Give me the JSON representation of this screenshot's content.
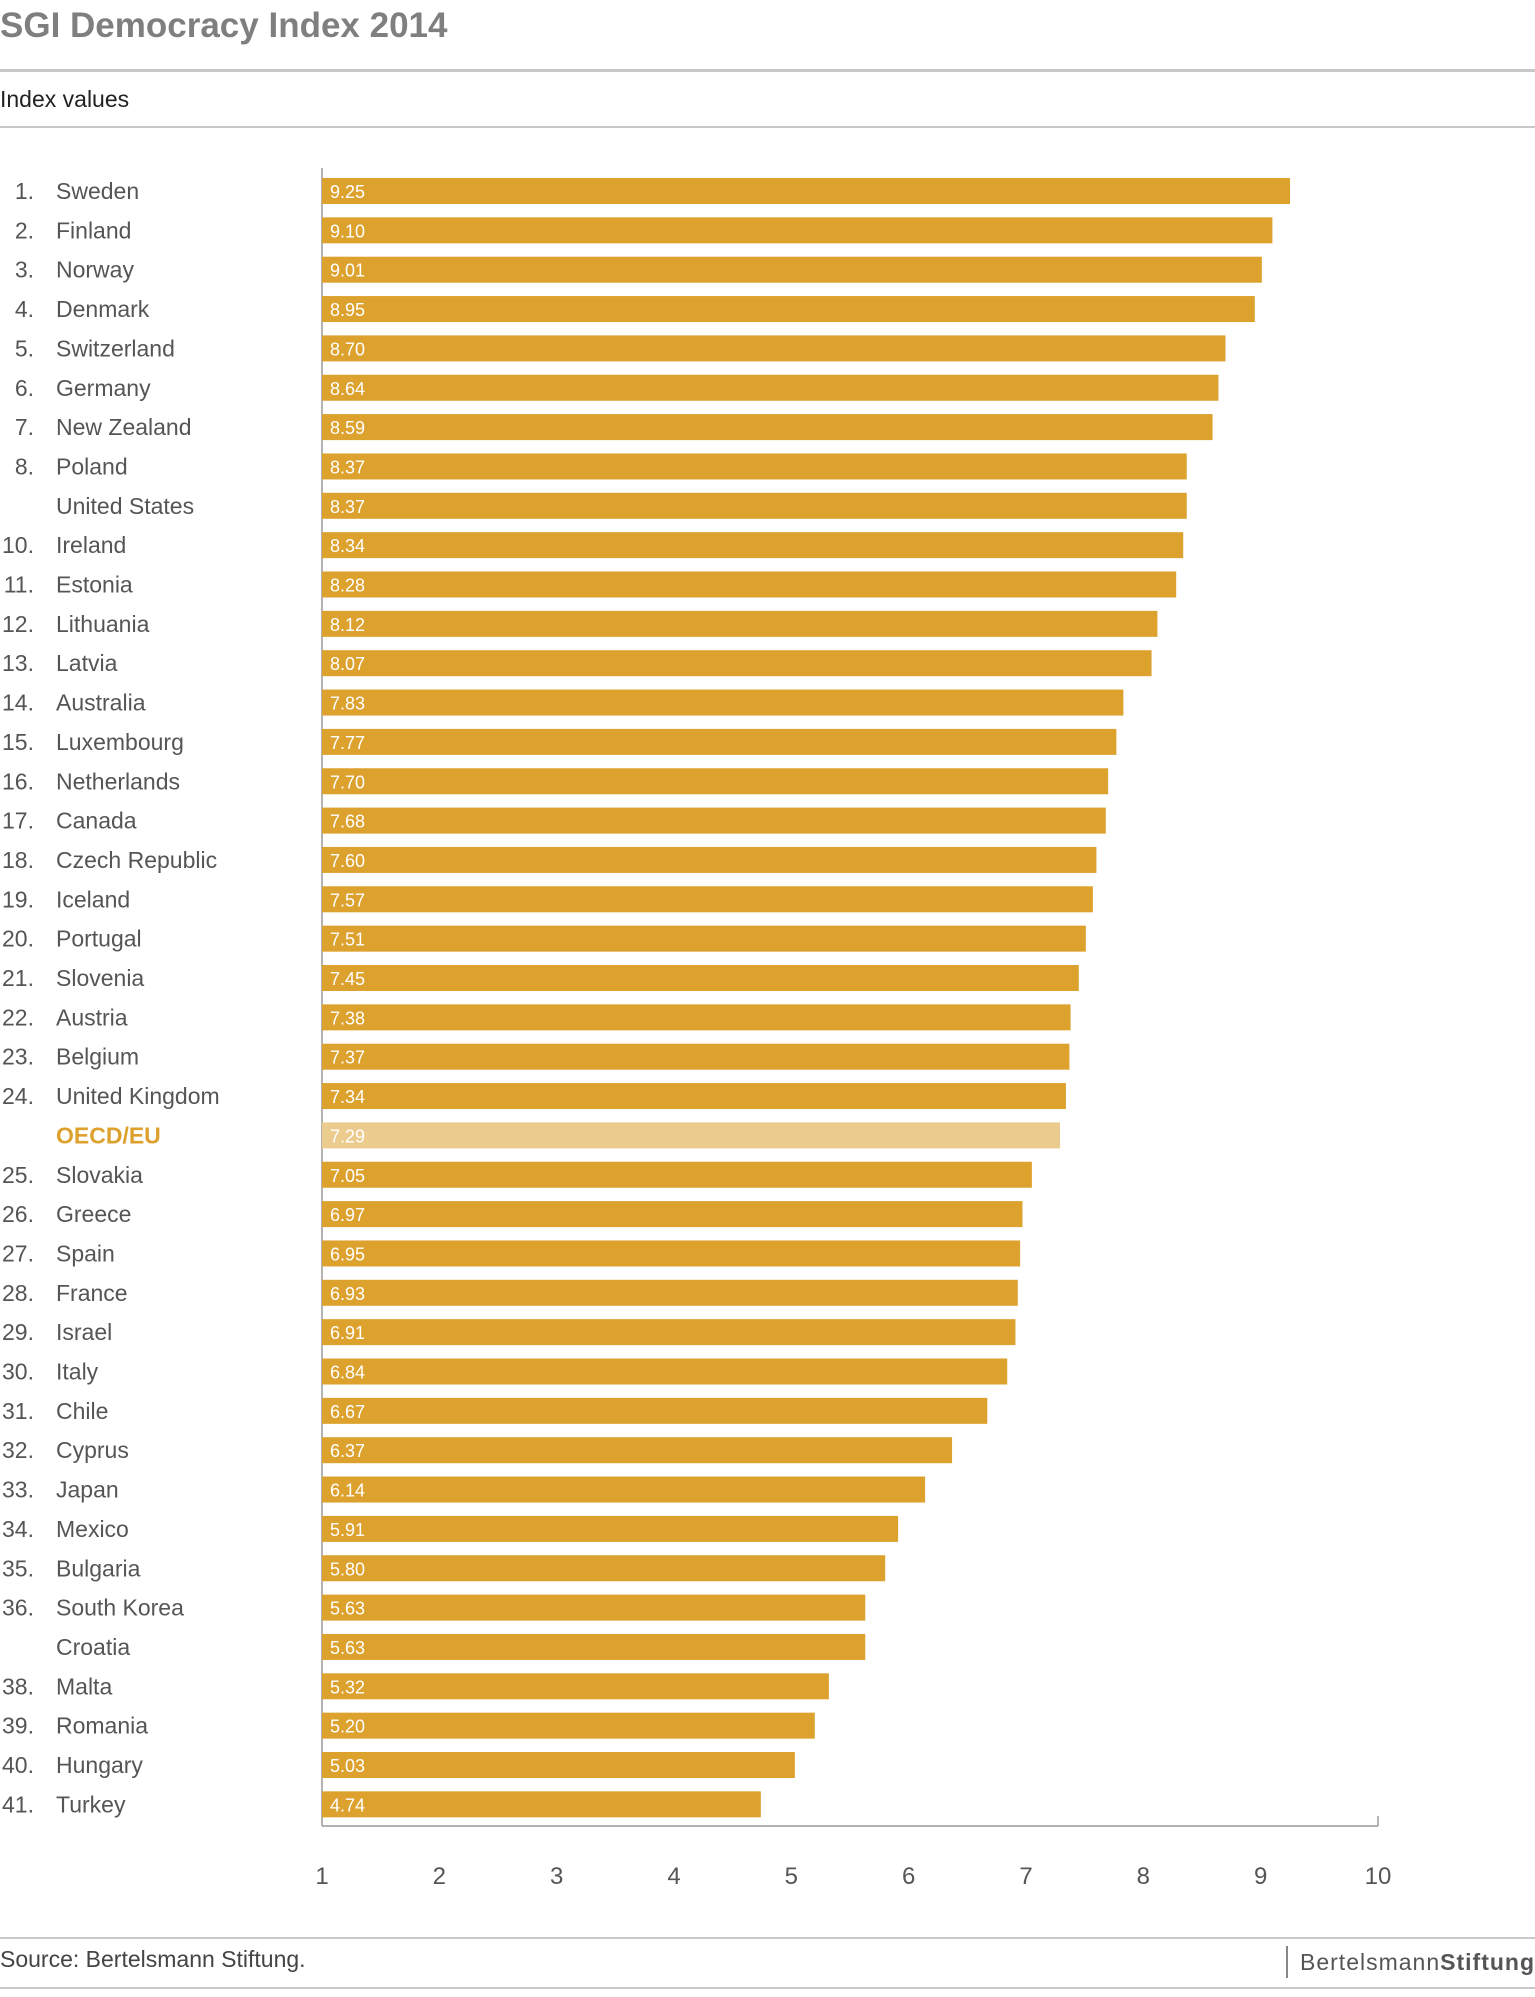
{
  "header": {
    "title": "SGI Democracy Index 2014",
    "subtitle": "Index values"
  },
  "footer": {
    "source": "Source: Bertelsmann Stiftung.",
    "logo_left": "Bertelsmann",
    "logo_right": "Stiftung"
  },
  "colors": {
    "bar": "#DDA12E",
    "highlight_bar": "#ECCB8E",
    "highlight_label": "#DDA12E",
    "label_text": "#555555",
    "value_text": "#ffffff"
  },
  "chart_data": {
    "type": "bar",
    "orientation": "horizontal",
    "title": "SGI Democracy Index 2014",
    "subtitle": "Index values",
    "xlim": [
      1,
      10
    ],
    "xticks": [
      1,
      2,
      3,
      4,
      5,
      6,
      7,
      8,
      9,
      10
    ],
    "grid": false,
    "rows": [
      {
        "rank": "1.",
        "name": "Sweden",
        "value": 9.25,
        "label": "9.25"
      },
      {
        "rank": "2.",
        "name": "Finland",
        "value": 9.1,
        "label": "9.10"
      },
      {
        "rank": "3.",
        "name": "Norway",
        "value": 9.01,
        "label": "9.01"
      },
      {
        "rank": "4.",
        "name": "Denmark",
        "value": 8.95,
        "label": "8.95"
      },
      {
        "rank": "5.",
        "name": "Switzerland",
        "value": 8.7,
        "label": "8.70"
      },
      {
        "rank": "6.",
        "name": "Germany",
        "value": 8.64,
        "label": "8.64"
      },
      {
        "rank": "7.",
        "name": "New Zealand",
        "value": 8.59,
        "label": "8.59"
      },
      {
        "rank": "8.",
        "name": "Poland",
        "value": 8.37,
        "label": "8.37"
      },
      {
        "rank": "",
        "name": "United States",
        "value": 8.37,
        "label": "8.37"
      },
      {
        "rank": "10.",
        "name": "Ireland",
        "value": 8.34,
        "label": "8.34"
      },
      {
        "rank": "11.",
        "name": "Estonia",
        "value": 8.28,
        "label": "8.28"
      },
      {
        "rank": "12.",
        "name": "Lithuania",
        "value": 8.12,
        "label": "8.12"
      },
      {
        "rank": "13.",
        "name": "Latvia",
        "value": 8.07,
        "label": "8.07"
      },
      {
        "rank": "14.",
        "name": "Australia",
        "value": 7.83,
        "label": "7.83"
      },
      {
        "rank": "15.",
        "name": "Luxembourg",
        "value": 7.77,
        "label": "7.77"
      },
      {
        "rank": "16.",
        "name": "Netherlands",
        "value": 7.7,
        "label": "7.70"
      },
      {
        "rank": "17.",
        "name": "Canada",
        "value": 7.68,
        "label": "7.68"
      },
      {
        "rank": "18.",
        "name": "Czech Republic",
        "value": 7.6,
        "label": "7.60"
      },
      {
        "rank": "19.",
        "name": "Iceland",
        "value": 7.57,
        "label": "7.57"
      },
      {
        "rank": "20.",
        "name": "Portugal",
        "value": 7.51,
        "label": "7.51"
      },
      {
        "rank": "21.",
        "name": "Slovenia",
        "value": 7.45,
        "label": "7.45"
      },
      {
        "rank": "22.",
        "name": "Austria",
        "value": 7.38,
        "label": "7.38"
      },
      {
        "rank": "23.",
        "name": "Belgium",
        "value": 7.37,
        "label": "7.37"
      },
      {
        "rank": "24.",
        "name": "United Kingdom",
        "value": 7.34,
        "label": "7.34"
      },
      {
        "rank": "",
        "name": "OECD/EU",
        "value": 7.29,
        "label": "7.29",
        "highlight": true
      },
      {
        "rank": "25.",
        "name": "Slovakia",
        "value": 7.05,
        "label": "7.05"
      },
      {
        "rank": "26.",
        "name": "Greece",
        "value": 6.97,
        "label": "6.97"
      },
      {
        "rank": "27.",
        "name": "Spain",
        "value": 6.95,
        "label": "6.95"
      },
      {
        "rank": "28.",
        "name": "France",
        "value": 6.93,
        "label": "6.93"
      },
      {
        "rank": "29.",
        "name": "Israel",
        "value": 6.91,
        "label": "6.91"
      },
      {
        "rank": "30.",
        "name": "Italy",
        "value": 6.84,
        "label": "6.84"
      },
      {
        "rank": "31.",
        "name": "Chile",
        "value": 6.67,
        "label": "6.67"
      },
      {
        "rank": "32.",
        "name": "Cyprus",
        "value": 6.37,
        "label": "6.37"
      },
      {
        "rank": "33.",
        "name": "Japan",
        "value": 6.14,
        "label": "6.14"
      },
      {
        "rank": "34.",
        "name": "Mexico",
        "value": 5.91,
        "label": "5.91"
      },
      {
        "rank": "35.",
        "name": "Bulgaria",
        "value": 5.8,
        "label": "5.80"
      },
      {
        "rank": "36.",
        "name": "South Korea",
        "value": 5.63,
        "label": "5.63"
      },
      {
        "rank": "",
        "name": "Croatia",
        "value": 5.63,
        "label": "5.63"
      },
      {
        "rank": "38.",
        "name": "Malta",
        "value": 5.32,
        "label": "5.32"
      },
      {
        "rank": "39.",
        "name": "Romania",
        "value": 5.2,
        "label": "5.20"
      },
      {
        "rank": "40.",
        "name": "Hungary",
        "value": 5.03,
        "label": "5.03"
      },
      {
        "rank": "41.",
        "name": "Turkey",
        "value": 4.74,
        "label": "4.74"
      }
    ]
  }
}
